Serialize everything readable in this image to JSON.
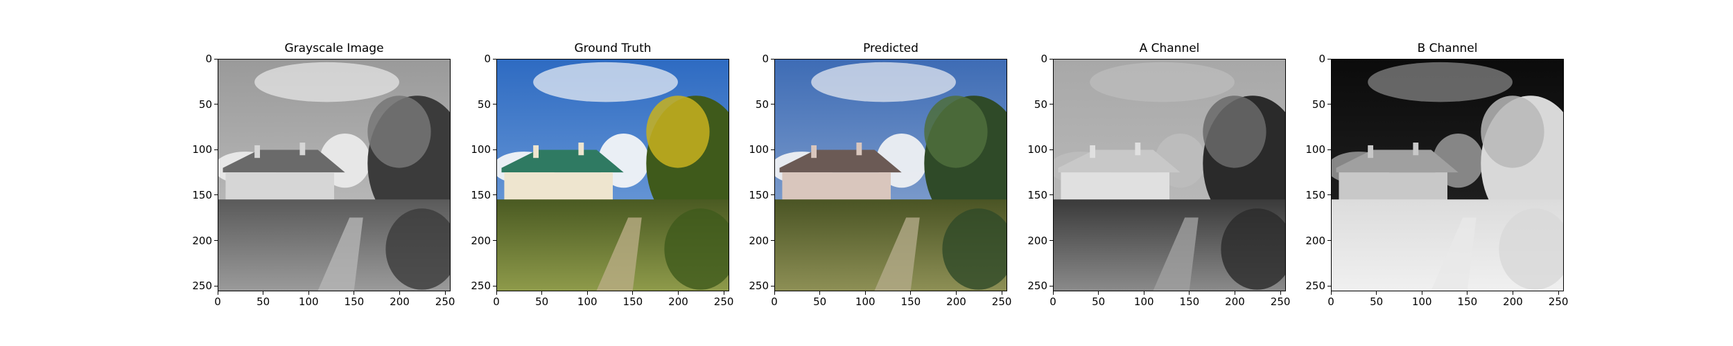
{
  "figure": {
    "panels": [
      {
        "title": "Grayscale Image",
        "image": "grayscale house photo"
      },
      {
        "title": "Ground Truth",
        "image": "color house photo"
      },
      {
        "title": "Predicted",
        "image": "predicted color house photo"
      },
      {
        "title": "A Channel",
        "image": "A channel map"
      },
      {
        "title": "B Channel",
        "image": "B channel map"
      }
    ],
    "axis": {
      "x_ticks": [
        "0",
        "50",
        "100",
        "150",
        "200",
        "250"
      ],
      "y_ticks": [
        "0",
        "50",
        "100",
        "150",
        "200",
        "250"
      ],
      "x_tick_values": [
        0,
        50,
        100,
        150,
        200,
        250
      ],
      "y_tick_values": [
        0,
        50,
        100,
        150,
        200,
        250
      ],
      "range": [
        0,
        256
      ]
    }
  }
}
